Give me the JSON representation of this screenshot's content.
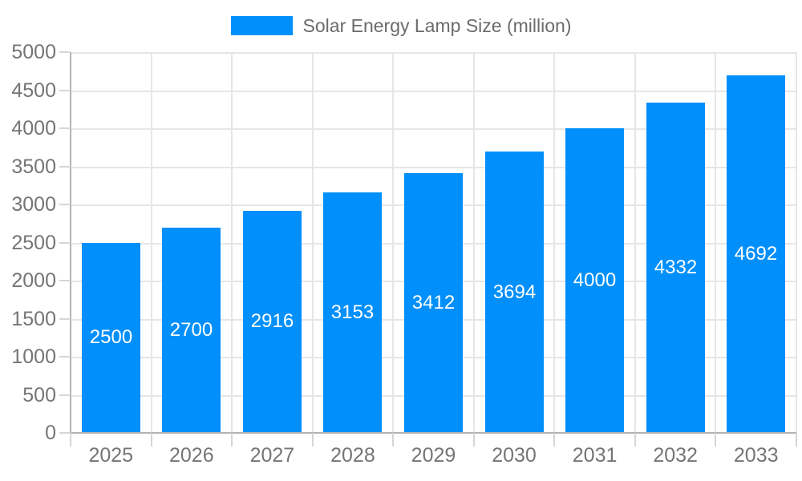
{
  "chart_data": {
    "type": "bar",
    "title": "Solar Energy Lamp Size (million)",
    "categories": [
      "2025",
      "2026",
      "2027",
      "2028",
      "2029",
      "2030",
      "2031",
      "2032",
      "2033"
    ],
    "series": [
      {
        "name": "Solar Energy Lamp Size (million)",
        "values": [
          2500,
          2700,
          2916,
          3153,
          3412,
          3694,
          4000,
          4332,
          4692
        ]
      }
    ],
    "xlabel": "",
    "ylabel": "",
    "ylim": [
      0,
      5000
    ],
    "y_tick_step": 500,
    "y_tick_labels": [
      "0",
      "500",
      "1000",
      "1500",
      "2000",
      "2500",
      "3000",
      "3500",
      "4000",
      "4500",
      "5000"
    ],
    "grid": "horizontal and vertical",
    "legend_position": "top-center",
    "value_labels": "inside bars, white, vertically centered",
    "colors": {
      "bar": "#008FFB",
      "grid_line": "#e6e6e6",
      "axis_line": "#b3b3b3",
      "tick_line": "#d6d6d6",
      "axis_label": "#757575",
      "legend_text": "#6b6b6b",
      "value_label": "#ffffff",
      "background": "#ffffff"
    }
  }
}
